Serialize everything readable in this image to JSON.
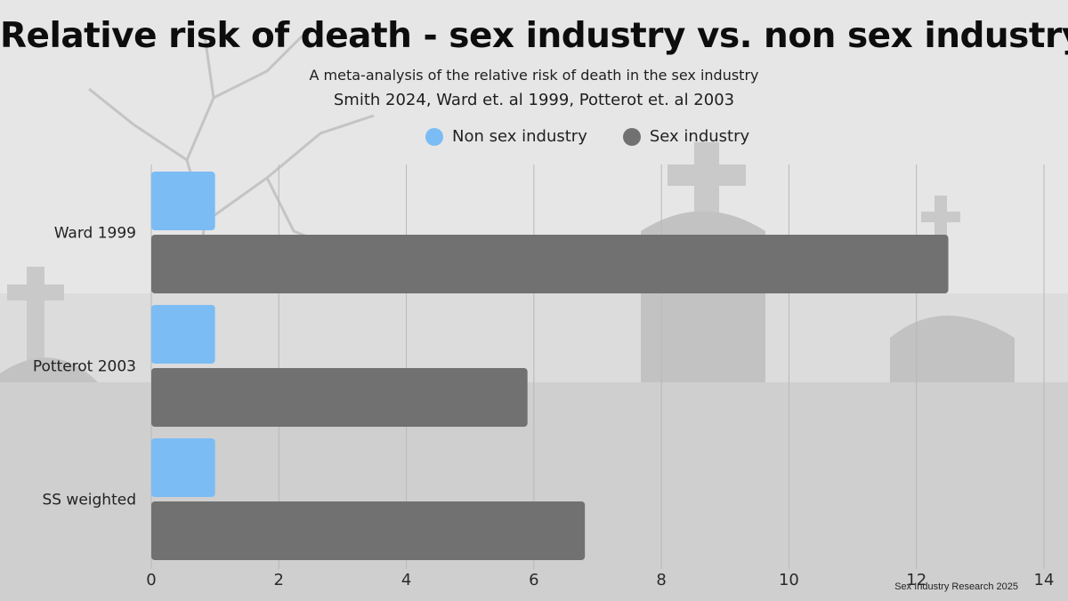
{
  "colors": {
    "non_sex": "#7bbcf5",
    "sex": "#717171",
    "grid": "#b8b8b8"
  },
  "footer": "Sex Industry Research 2025",
  "chart_data": {
    "type": "bar",
    "orientation": "horizontal",
    "title": "Relative risk of death - sex industry vs. non sex industry",
    "subtitle": "A meta-analysis of the relative risk of death in the sex industry",
    "subtitle2": "Smith 2024, Ward et. al 1999, Potterot et. al 2003",
    "categories": [
      "Ward 1999",
      "Potterot 2003",
      "SS weighted"
    ],
    "series": [
      {
        "name": "Non sex industry",
        "values": [
          1,
          1,
          1
        ]
      },
      {
        "name": "Sex industry",
        "values": [
          12.5,
          5.9,
          6.8
        ]
      }
    ],
    "xlim": [
      0,
      14
    ],
    "xticks": [
      "0",
      "2",
      "4",
      "6",
      "8",
      "10",
      "12",
      "14"
    ],
    "grid": true,
    "legend_position": "top"
  }
}
